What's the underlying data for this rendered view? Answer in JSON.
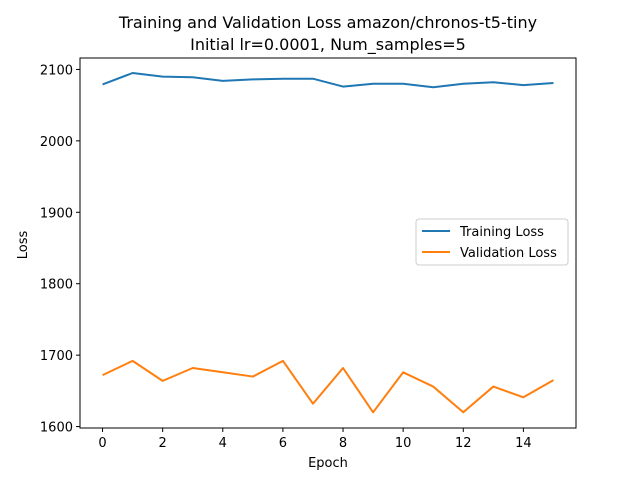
{
  "chart_data": {
    "type": "line",
    "title_line1": "Training and Validation Loss amazon/chronos-t5-tiny",
    "title_line2": "Initial lr=0.0001, Num_samples=5",
    "xlabel": "Epoch",
    "ylabel": "Loss",
    "x": [
      0,
      1,
      2,
      3,
      4,
      5,
      6,
      7,
      8,
      9,
      10,
      11,
      12,
      13,
      14,
      15
    ],
    "xlim": [
      -0.75,
      15.75
    ],
    "ylim": [
      1598,
      2116
    ],
    "xticks": [
      0,
      2,
      4,
      6,
      8,
      10,
      12,
      14
    ],
    "yticks": [
      1600,
      1700,
      1800,
      1900,
      2000,
      2100
    ],
    "grid": false,
    "legend_position": "center-right",
    "series": [
      {
        "name": "Training Loss",
        "color": "#1f77b4",
        "values": [
          2079,
          2095,
          2090,
          2089,
          2084,
          2086,
          2087,
          2087,
          2076,
          2080,
          2080,
          2075,
          2080,
          2082,
          2078,
          2081
        ]
      },
      {
        "name": "Validation Loss",
        "color": "#ff7f0e",
        "values": [
          1672,
          1692,
          1664,
          1682,
          1676,
          1670,
          1692,
          1632,
          1682,
          1620,
          1676,
          1656,
          1620,
          1656,
          1641,
          1665
        ]
      }
    ]
  }
}
